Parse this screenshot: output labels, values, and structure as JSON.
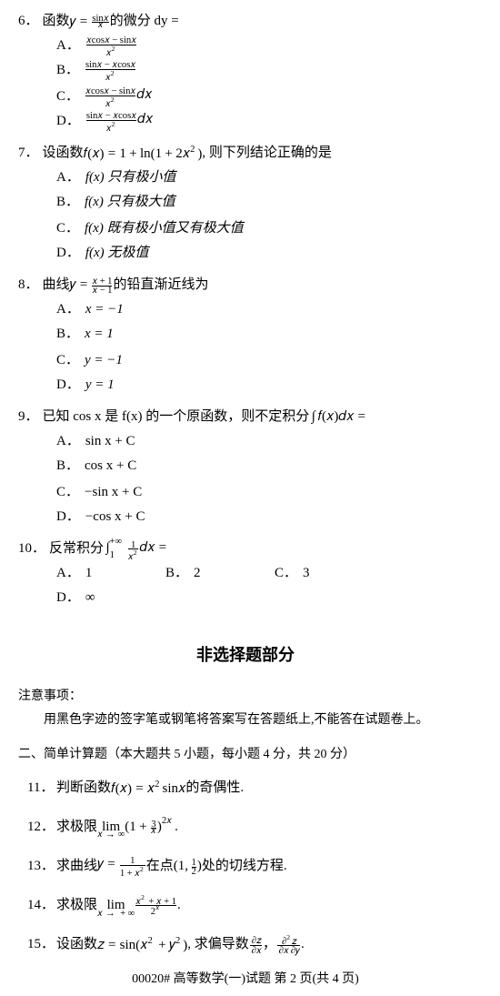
{
  "q6": {
    "num": "6．",
    "stem_pre": "函数 ",
    "stem_post": " 的微分 dy =",
    "A": "A．",
    "B": "B．",
    "C": "C．",
    "D": "D．"
  },
  "q7": {
    "num": "7．",
    "stem_pre": "设函数 ",
    "stem_post": " , 则下列结论正确的是",
    "A_lbl": "A．",
    "A_txt": "f(x) 只有极小值",
    "B_lbl": "B．",
    "B_txt": "f(x) 只有极大值",
    "C_lbl": "C．",
    "C_txt": "f(x) 既有极小值又有极大值",
    "D_lbl": "D．",
    "D_txt": "f(x) 无极值"
  },
  "q8": {
    "num": "8．",
    "stem_pre": "曲线 ",
    "stem_post": " 的铅直渐近线为",
    "A_lbl": "A．",
    "A_txt": "x = −1",
    "B_lbl": "B．",
    "B_txt": "x = 1",
    "C_lbl": "C．",
    "C_txt": "y = −1",
    "D_lbl": "D．",
    "D_txt": "y = 1"
  },
  "q9": {
    "num": "9．",
    "stem_pre": "已知 cos x 是 f(x) 的一个原函数，则不定积分 ",
    "stem_post": "",
    "A_lbl": "A．",
    "A_txt": "sin x + C",
    "B_lbl": "B．",
    "B_txt": "cos x + C",
    "C_lbl": "C．",
    "C_txt": "−sin x + C",
    "D_lbl": "D．",
    "D_txt": "−cos x + C"
  },
  "q10": {
    "num": "10．",
    "stem_pre": "反常积分 ",
    "stem_post": "",
    "A_lbl": "A．",
    "A_txt": "1",
    "B_lbl": "B．",
    "B_txt": "2",
    "C_lbl": "C．",
    "C_txt": "3",
    "D_lbl": "D．",
    "D_txt": "∞"
  },
  "section2_title": "非选择题部分",
  "note_title": "注意事项：",
  "note_body": "用黑色字迹的签字笔或钢笔将答案写在答题纸上,不能答在试题卷上。",
  "subsection2": "二、简单计算题（本大题共 5 小题，每小题 4 分，共 20 分）",
  "q11": {
    "num": "11．",
    "pre": "判断函数 ",
    "post": " 的奇偶性."
  },
  "q12": {
    "num": "12．",
    "pre": "求极限 ",
    "post": "."
  },
  "q13": {
    "num": "13．",
    "pre": "求曲线 ",
    "mid": " 在点 ",
    "post": " 处的切线方程."
  },
  "q14": {
    "num": "14．",
    "pre": "求极限 ",
    "post": "."
  },
  "q15": {
    "num": "15．",
    "pre": "设函数 ",
    "mid": " ,  求偏导数 ",
    "comma": "，",
    "post": "."
  },
  "footer": "00020# 高等数学(一)试题 第 2 页(共 4 页)"
}
